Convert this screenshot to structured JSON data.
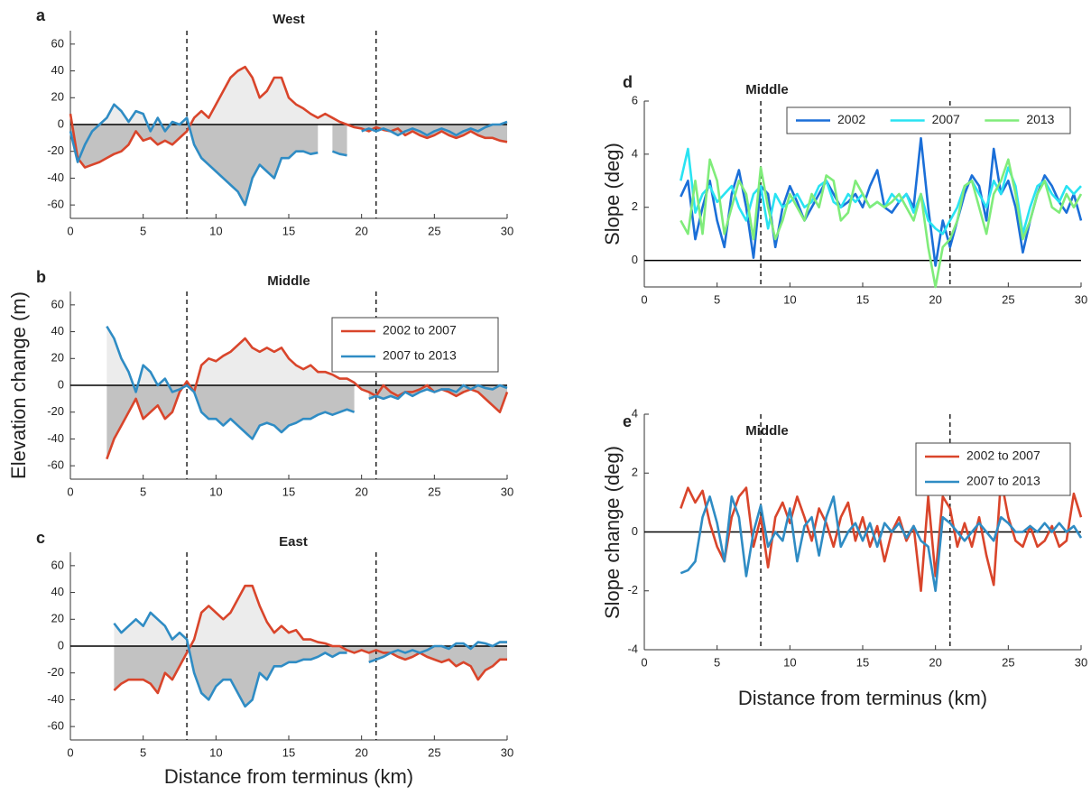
{
  "chart_data": [
    {
      "type": "line",
      "panel": "a",
      "title": "West",
      "fill": true,
      "x": [
        0,
        0.5,
        1,
        1.5,
        2,
        2.5,
        3,
        3.5,
        4,
        4.5,
        5,
        5.5,
        6,
        6.5,
        7,
        7.5,
        8,
        8.5,
        9,
        9.5,
        10,
        10.5,
        11,
        11.5,
        12,
        12.5,
        13,
        13.5,
        14,
        14.5,
        15,
        15.5,
        16,
        16.5,
        17,
        17.5,
        18,
        18.5,
        19,
        19.5,
        20,
        20.5,
        21,
        21.5,
        22,
        22.5,
        23,
        23.5,
        24,
        24.5,
        25,
        25.5,
        26,
        26.5,
        27,
        27.5,
        28,
        28.5,
        29,
        29.5,
        30
      ],
      "series": [
        {
          "color": "#d9452b",
          "values": [
            8,
            -25,
            -32,
            -30,
            -28,
            -25,
            -22,
            -20,
            -15,
            -5,
            -12,
            -10,
            -15,
            -12,
            -15,
            -10,
            -5,
            5,
            10,
            5,
            15,
            25,
            35,
            40,
            43,
            35,
            20,
            25,
            35,
            35,
            20,
            15,
            12,
            8,
            5,
            8,
            5,
            2,
            0,
            -2,
            -3,
            -5,
            -2,
            -4,
            -5,
            -3,
            -8,
            -5,
            -8,
            -10,
            -8,
            -5,
            -8,
            -10,
            -8,
            -5,
            -8,
            -10,
            -10,
            -12,
            -13
          ]
        },
        {
          "color": "#2f8cc4",
          "values": [
            -5,
            -28,
            -15,
            -5,
            0,
            5,
            15,
            10,
            2,
            10,
            8,
            -5,
            5,
            -5,
            2,
            0,
            5,
            -15,
            -25,
            -30,
            -35,
            -40,
            -45,
            -50,
            -60,
            -40,
            -30,
            -35,
            -40,
            -25,
            -25,
            -20,
            -20,
            -22,
            -21,
            null,
            -20,
            -22,
            -23,
            null,
            -5,
            -3,
            -5,
            -3,
            -5,
            -8,
            -5,
            -3,
            -5,
            -8,
            -5,
            -3,
            -5,
            -8,
            -5,
            -3,
            -5,
            -2,
            0,
            0,
            2
          ]
        }
      ],
      "xlim": [
        0,
        30
      ],
      "ylim": [
        -70,
        70
      ],
      "xticks": [
        0,
        5,
        10,
        15,
        20,
        25,
        30
      ],
      "yticks": [
        -60,
        -40,
        -20,
        0,
        20,
        40,
        60
      ],
      "vlines": [
        8,
        21
      ]
    },
    {
      "type": "line",
      "panel": "b",
      "title": "Middle",
      "fill": true,
      "ylabel": "Elevation change (m)",
      "legend": "upper right",
      "x": [
        2.5,
        3,
        3.5,
        4,
        4.5,
        5,
        5.5,
        6,
        6.5,
        7,
        7.5,
        8,
        8.5,
        9,
        9.5,
        10,
        10.5,
        11,
        11.5,
        12,
        12.5,
        13,
        13.5,
        14,
        14.5,
        15,
        15.5,
        16,
        16.5,
        17,
        17.5,
        18,
        18.5,
        19,
        19.5,
        20,
        20.5,
        21,
        21.5,
        22,
        22.5,
        23,
        23.5,
        24,
        24.5,
        25,
        25.5,
        26,
        26.5,
        27,
        27.5,
        28,
        28.5,
        29,
        29.5,
        30
      ],
      "series": [
        {
          "name": "2002 to 2007",
          "color": "#d9452b",
          "values": [
            -55,
            -40,
            -30,
            -20,
            -10,
            -25,
            -20,
            -15,
            -25,
            -20,
            -5,
            3,
            -5,
            15,
            20,
            18,
            22,
            25,
            30,
            35,
            28,
            25,
            28,
            25,
            28,
            20,
            15,
            12,
            15,
            10,
            10,
            8,
            5,
            5,
            2,
            -3,
            -5,
            -8,
            0,
            -5,
            -8,
            -5,
            -5,
            -3,
            0,
            -5,
            -3,
            -5,
            -8,
            -5,
            -3,
            -5,
            -10,
            -15,
            -20,
            -5
          ]
        },
        {
          "name": "2007 to 2013",
          "color": "#2f8cc4",
          "values": [
            44,
            35,
            20,
            10,
            -5,
            15,
            10,
            0,
            5,
            -5,
            -3,
            0,
            -5,
            -20,
            -25,
            -25,
            -30,
            -25,
            -30,
            -35,
            -40,
            -30,
            -28,
            -30,
            -35,
            -30,
            -28,
            -25,
            -25,
            -22,
            -20,
            -22,
            -20,
            -18,
            -20,
            null,
            -10,
            -8,
            -10,
            -8,
            -10,
            -5,
            -8,
            -5,
            -3,
            -5,
            -3,
            -3,
            -5,
            0,
            -3,
            0,
            -2,
            -3,
            0,
            -2
          ]
        }
      ],
      "xlim": [
        0,
        30
      ],
      "ylim": [
        -70,
        70
      ],
      "xticks": [
        0,
        5,
        10,
        15,
        20,
        25,
        30
      ],
      "yticks": [
        -60,
        -40,
        -20,
        0,
        20,
        40,
        60
      ],
      "vlines": [
        8,
        21
      ]
    },
    {
      "type": "line",
      "panel": "c",
      "title": "East",
      "fill": true,
      "xlabel": "Distance from terminus (km)",
      "x": [
        3,
        3.5,
        4,
        4.5,
        5,
        5.5,
        6,
        6.5,
        7,
        7.5,
        8,
        8.5,
        9,
        9.5,
        10,
        10.5,
        11,
        11.5,
        12,
        12.5,
        13,
        13.5,
        14,
        14.5,
        15,
        15.5,
        16,
        16.5,
        17,
        17.5,
        18,
        18.5,
        19,
        19.5,
        20,
        20.5,
        21,
        21.5,
        22,
        22.5,
        23,
        23.5,
        24,
        24.5,
        25,
        25.5,
        26,
        26.5,
        27,
        27.5,
        28,
        28.5,
        29,
        29.5,
        30
      ],
      "series": [
        {
          "color": "#d9452b",
          "values": [
            -33,
            -28,
            -25,
            -25,
            -25,
            -28,
            -35,
            -20,
            -25,
            -15,
            -5,
            5,
            25,
            30,
            25,
            20,
            25,
            35,
            45,
            45,
            30,
            18,
            10,
            15,
            10,
            12,
            5,
            5,
            3,
            2,
            0,
            0,
            -3,
            -5,
            -3,
            -5,
            -3,
            -5,
            -5,
            -8,
            -10,
            -8,
            -5,
            -8,
            -10,
            -12,
            -10,
            -15,
            -12,
            -15,
            -25,
            -18,
            -15,
            -10,
            -10
          ]
        },
        {
          "color": "#2f8cc4",
          "values": [
            17,
            10,
            15,
            20,
            15,
            25,
            20,
            15,
            5,
            10,
            5,
            -20,
            -35,
            -40,
            -30,
            -25,
            -25,
            -35,
            -45,
            -40,
            -20,
            -25,
            -15,
            -15,
            -12,
            -12,
            -10,
            -10,
            -8,
            -5,
            -8,
            -5,
            -5,
            null,
            null,
            -12,
            -10,
            -8,
            -5,
            -3,
            -5,
            -3,
            -5,
            -3,
            0,
            0,
            -2,
            2,
            2,
            -2,
            3,
            2,
            0,
            3,
            3
          ]
        }
      ],
      "xlim": [
        0,
        30
      ],
      "ylim": [
        -70,
        70
      ],
      "xticks": [
        0,
        5,
        10,
        15,
        20,
        25,
        30
      ],
      "yticks": [
        -60,
        -40,
        -20,
        0,
        20,
        40,
        60
      ],
      "vlines": [
        8,
        21
      ]
    },
    {
      "type": "line",
      "panel": "d",
      "title": "Middle",
      "ylabel": "Slope (deg)",
      "legend": "upper center",
      "x": [
        2.5,
        3,
        3.5,
        4,
        4.5,
        5,
        5.5,
        6,
        6.5,
        7,
        7.5,
        8,
        8.5,
        9,
        9.5,
        10,
        10.5,
        11,
        11.5,
        12,
        12.5,
        13,
        13.5,
        14,
        14.5,
        15,
        15.5,
        16,
        16.5,
        17,
        17.5,
        18,
        18.5,
        19,
        19.5,
        20,
        20.5,
        21,
        21.5,
        22,
        22.5,
        23,
        23.5,
        24,
        24.5,
        25,
        25.5,
        26,
        26.5,
        27,
        27.5,
        28,
        28.5,
        29,
        29.5,
        30
      ],
      "series": [
        {
          "name": "2002",
          "color": "#1b6fd8",
          "values": [
            2.4,
            3.0,
            0.8,
            2.0,
            3.0,
            1.5,
            0.5,
            2.5,
            3.4,
            2.0,
            0.1,
            2.8,
            2.5,
            0.5,
            2.0,
            2.8,
            2.2,
            1.5,
            2.0,
            2.5,
            3.0,
            2.5,
            2.0,
            2.2,
            2.5,
            2.0,
            2.8,
            3.4,
            2.0,
            1.8,
            2.2,
            2.5,
            2.0,
            4.6,
            2.0,
            -0.2,
            1.5,
            0.5,
            1.5,
            2.5,
            3.2,
            2.8,
            1.5,
            4.2,
            2.5,
            3.0,
            2.0,
            0.3,
            1.5,
            2.5,
            3.2,
            2.8,
            2.2,
            1.8,
            2.5,
            1.5
          ]
        },
        {
          "name": "2007",
          "color": "#29e3f2",
          "values": [
            3.0,
            4.2,
            1.8,
            2.5,
            2.8,
            2.2,
            2.5,
            2.8,
            2.0,
            1.5,
            2.5,
            2.8,
            1.2,
            2.5,
            2.0,
            2.2,
            2.5,
            2.0,
            2.2,
            2.8,
            3.0,
            2.2,
            2.0,
            2.5,
            2.2,
            2.5,
            2.0,
            2.2,
            2.0,
            2.5,
            2.2,
            2.5,
            1.8,
            2.5,
            1.5,
            1.2,
            1.0,
            1.5,
            2.0,
            2.8,
            3.0,
            2.5,
            2.0,
            3.0,
            2.5,
            3.5,
            2.8,
            1.0,
            2.0,
            2.8,
            3.0,
            2.5,
            2.2,
            2.8,
            2.5,
            2.8
          ]
        },
        {
          "name": "2013",
          "color": "#80ec7a",
          "values": [
            1.5,
            1.0,
            3.0,
            1.0,
            3.8,
            3.0,
            1.0,
            2.0,
            3.0,
            2.5,
            0.8,
            3.5,
            2.0,
            0.8,
            1.5,
            2.5,
            2.0,
            1.5,
            2.5,
            2.0,
            3.2,
            3.0,
            1.5,
            1.8,
            3.0,
            2.5,
            2.0,
            2.2,
            2.0,
            2.2,
            2.5,
            2.0,
            1.5,
            2.5,
            0.5,
            -1.0,
            0.5,
            0.8,
            1.5,
            2.8,
            3.0,
            2.0,
            1.0,
            2.5,
            3.0,
            3.8,
            2.5,
            0.8,
            1.5,
            2.5,
            3.0,
            2.0,
            1.8,
            2.5,
            2.0,
            2.5
          ]
        }
      ],
      "xlim": [
        0,
        30
      ],
      "ylim": [
        -1,
        6
      ],
      "xticks": [
        0,
        5,
        10,
        15,
        20,
        25,
        30
      ],
      "yticks": [
        0,
        2,
        4,
        6
      ],
      "vlines": [
        8,
        21
      ]
    },
    {
      "type": "line",
      "panel": "e",
      "title": "Middle",
      "ylabel": "Slope change (deg)",
      "xlabel": "Distance from terminus (km)",
      "legend": "upper right",
      "x": [
        2.5,
        3,
        3.5,
        4,
        4.5,
        5,
        5.5,
        6,
        6.5,
        7,
        7.5,
        8,
        8.5,
        9,
        9.5,
        10,
        10.5,
        11,
        11.5,
        12,
        12.5,
        13,
        13.5,
        14,
        14.5,
        15,
        15.5,
        16,
        16.5,
        17,
        17.5,
        18,
        18.5,
        19,
        19.5,
        20,
        20.5,
        21,
        21.5,
        22,
        22.5,
        23,
        23.5,
        24,
        24.5,
        25,
        25.5,
        26,
        26.5,
        27,
        27.5,
        28,
        28.5,
        29,
        29.5,
        30
      ],
      "series": [
        {
          "name": "2002 to 2007",
          "color": "#d9452b",
          "values": [
            0.8,
            1.5,
            1.0,
            1.4,
            0.3,
            -0.5,
            -1.0,
            0.5,
            1.2,
            1.5,
            -0.5,
            0.5,
            -1.2,
            0.5,
            1.0,
            0.3,
            1.2,
            0.5,
            -0.3,
            0.8,
            0.3,
            -0.5,
            0.5,
            1.0,
            -0.3,
            0.5,
            -0.5,
            0.2,
            -1.0,
            0.0,
            0.5,
            -0.3,
            0.2,
            -2.0,
            1.2,
            -1.5,
            1.2,
            0.8,
            -0.5,
            0.3,
            -0.5,
            0.5,
            -0.8,
            -1.8,
            1.8,
            0.5,
            -0.3,
            -0.5,
            0.2,
            -0.5,
            -0.3,
            0.2,
            -0.5,
            -0.3,
            1.3,
            0.5
          ]
        },
        {
          "name": "2007 to 2013",
          "color": "#2f8cc4",
          "values": [
            -1.4,
            -1.3,
            -1.0,
            0.5,
            1.2,
            0.3,
            -1.0,
            1.2,
            0.5,
            -1.5,
            0.0,
            0.9,
            -0.5,
            0.0,
            -0.3,
            0.8,
            -1.0,
            0.2,
            0.5,
            -0.8,
            0.5,
            1.2,
            -0.5,
            0.0,
            0.3,
            -0.3,
            0.3,
            -0.5,
            0.3,
            0.0,
            0.3,
            -0.2,
            0.2,
            -0.3,
            -0.5,
            -2.0,
            0.5,
            0.3,
            0.0,
            -0.3,
            0.0,
            0.3,
            0.0,
            -0.3,
            0.5,
            0.3,
            0.0,
            0.0,
            0.2,
            0.0,
            0.3,
            0.0,
            0.3,
            0.0,
            0.2,
            -0.2
          ]
        }
      ],
      "xlim": [
        0,
        30
      ],
      "ylim": [
        -4,
        4
      ],
      "xticks": [
        0,
        5,
        10,
        15,
        20,
        25,
        30
      ],
      "yticks": [
        -4,
        -2,
        0,
        2,
        4
      ],
      "vlines": [
        8,
        21
      ]
    }
  ]
}
